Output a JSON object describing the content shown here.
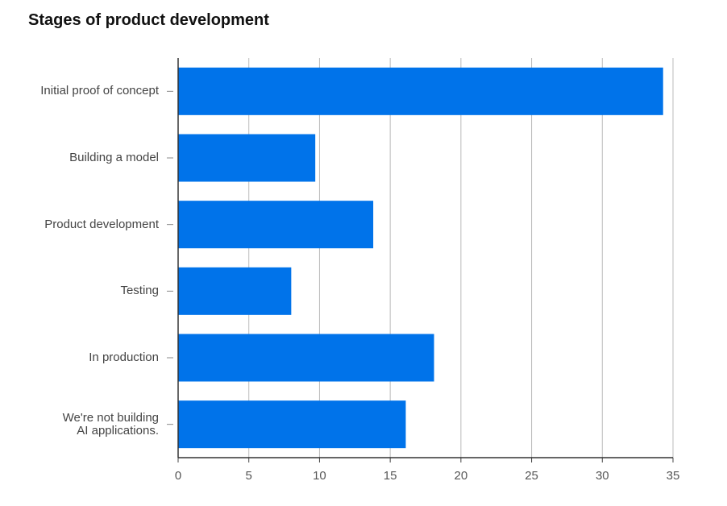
{
  "chart_data": {
    "type": "hbar",
    "title": "Stages of product development",
    "categories": [
      "Initial proof of concept",
      "Building a model",
      "Product development",
      "Testing",
      "In production",
      "We're not building\nAI applications."
    ],
    "values": [
      34.3,
      9.7,
      13.8,
      8.0,
      18.1,
      16.1
    ],
    "color": "#0073ea",
    "xlim": [
      0,
      35
    ],
    "xticks": [
      0,
      5,
      10,
      15,
      20,
      25,
      30,
      35
    ],
    "grid": true
  }
}
